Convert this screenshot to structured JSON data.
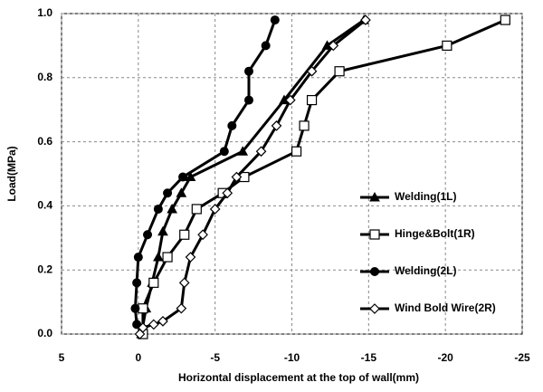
{
  "chart_data": {
    "type": "line",
    "x_label": "Horizontal displacement at the top of wall(mm)",
    "y_label": "Load(MPa)",
    "xlim": [
      5,
      -25
    ],
    "xticks": [
      5,
      0,
      -5,
      -10,
      -15,
      -20,
      -25
    ],
    "ylim": [
      0,
      1
    ],
    "yticks": [
      {
        "value": 0,
        "label": "0.0"
      },
      0.2,
      0.4,
      0.6,
      0.8,
      {
        "value": 1,
        "label": "1.0"
      }
    ],
    "grid": true,
    "legend": "right",
    "series": [
      {
        "name": "Welding(1L)",
        "color": "#000000",
        "marker": "triangle",
        "x": [
          -0.2,
          -0.5,
          -0.9,
          -1.3,
          -1.6,
          -2.2,
          -2.8,
          -3.4,
          -6.8,
          -9.5,
          -12.3,
          -14.7
        ],
        "values": [
          0.0,
          0.08,
          0.16,
          0.24,
          0.32,
          0.39,
          0.44,
          0.49,
          0.57,
          0.73,
          0.9,
          0.98
        ]
      },
      {
        "name": "Hinge&Bolt(1R)",
        "color": "#000000",
        "marker": "square",
        "x": [
          -0.3,
          -0.3,
          -1.0,
          -1.9,
          -3.0,
          -3.8,
          -5.5,
          -6.9,
          -10.3,
          -10.8,
          -11.3,
          -13.1,
          -20.1,
          -23.9
        ],
        "values": [
          0.0,
          0.08,
          0.16,
          0.24,
          0.31,
          0.39,
          0.44,
          0.49,
          0.57,
          0.65,
          0.73,
          0.82,
          0.9,
          0.98
        ]
      },
      {
        "name": "Welding(2L)",
        "color": "#000000",
        "marker": "circle",
        "x": [
          0.1,
          0.2,
          0.1,
          0.0,
          -0.6,
          -1.3,
          -1.9,
          -2.9,
          -5.6,
          -6.1,
          -7.2,
          -7.2,
          -8.3,
          -8.9
        ],
        "values": [
          0.03,
          0.08,
          0.16,
          0.24,
          0.31,
          0.39,
          0.44,
          0.49,
          0.57,
          0.65,
          0.73,
          0.82,
          0.9,
          0.98
        ]
      },
      {
        "name": "Wind Bold Wire(2R)",
        "color": "#000000",
        "marker": "diamond",
        "x": [
          -0.1,
          -0.3,
          -1.0,
          -1.6,
          -2.8,
          -3.0,
          -3.4,
          -4.2,
          -5.0,
          -5.8,
          -6.4,
          -8.0,
          -9.0,
          -9.9,
          -11.3,
          -12.7,
          -14.8
        ],
        "values": [
          0.0,
          0.02,
          0.03,
          0.04,
          0.08,
          0.16,
          0.24,
          0.31,
          0.39,
          0.44,
          0.49,
          0.57,
          0.65,
          0.73,
          0.82,
          0.9,
          0.98
        ]
      }
    ]
  }
}
